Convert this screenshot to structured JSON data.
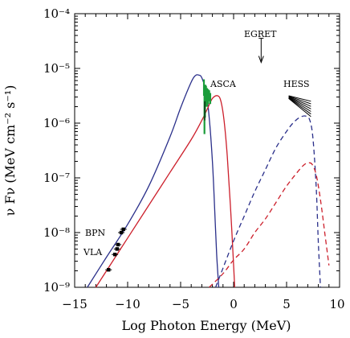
{
  "chart_data": {
    "type": "line",
    "xlabel": "Log Photon Energy (MeV)",
    "ylabel": "ν Fν (MeV cm⁻² s⁻¹)",
    "xlim": [
      -15,
      10
    ],
    "ylim_log10": [
      -9,
      -4
    ],
    "yscale": "log",
    "x_ticks": [
      "−15",
      "−10",
      "−5",
      "0",
      "5",
      "10"
    ],
    "y_ticks": [
      "10⁻⁹",
      "10⁻⁸",
      "10⁻⁷",
      "10⁻⁶",
      "10⁻⁵",
      "10⁻⁴"
    ],
    "annotations": {
      "egret": "EGRET",
      "asca": "ASCA",
      "hess": "HESS",
      "bpn": "BPN",
      "vla": "VLA"
    },
    "colors": {
      "blue_model": "#2a2f8a",
      "red_model": "#cc1f2b",
      "asca_data": "#1a9c3a",
      "axes": "#000000"
    },
    "series": [
      {
        "style": "solid",
        "color": "#2a2f8a",
        "x": [
          -13.8,
          -12,
          -10,
          -8,
          -6,
          -5,
          -4,
          -3.6,
          -3.3,
          -3,
          -2.6,
          -2.3,
          -2,
          -1.8,
          -1.6,
          -1.4
        ],
        "log_y": [
          -9.0,
          -8.45,
          -7.85,
          -7.15,
          -6.25,
          -5.72,
          -5.25,
          -5.13,
          -5.12,
          -5.17,
          -5.42,
          -5.9,
          -6.7,
          -7.5,
          -8.4,
          -9.0
        ]
      },
      {
        "style": "solid",
        "color": "#cc1f2b",
        "x": [
          -13,
          -12,
          -10,
          -8,
          -6,
          -4,
          -3,
          -2.5,
          -2,
          -1.5,
          -1.2,
          -0.9,
          -0.6,
          -0.3,
          0,
          0.1
        ],
        "log_y": [
          -9.0,
          -8.7,
          -8.1,
          -7.5,
          -6.9,
          -6.3,
          -5.95,
          -5.75,
          -5.55,
          -5.5,
          -5.6,
          -5.95,
          -6.6,
          -7.5,
          -8.6,
          -9.0
        ]
      },
      {
        "style": "dashed",
        "color": "#2a2f8a",
        "x": [
          -1.7,
          -1,
          0,
          1,
          2,
          3,
          4,
          5,
          5.6,
          6.2,
          6.8,
          7.2,
          7.5,
          7.8,
          8.0,
          8.2
        ],
        "log_y": [
          -9.0,
          -8.65,
          -8.15,
          -7.7,
          -7.25,
          -6.85,
          -6.45,
          -6.15,
          -6.0,
          -5.9,
          -5.87,
          -5.95,
          -6.3,
          -7.2,
          -8.2,
          -9.0
        ]
      },
      {
        "style": "dashed",
        "color": "#cc1f2b",
        "x": [
          -2.3,
          -1,
          0,
          1,
          2,
          3,
          4,
          5,
          6,
          6.6,
          7,
          7.4,
          7.8,
          8.2,
          8.6,
          9.0
        ],
        "log_y": [
          -9.0,
          -8.75,
          -8.5,
          -8.3,
          -8.0,
          -7.75,
          -7.45,
          -7.15,
          -6.9,
          -6.77,
          -6.73,
          -6.75,
          -6.95,
          -7.4,
          -8.0,
          -8.6
        ]
      }
    ],
    "data_points": {
      "vla_bpn": {
        "x": [
          -11.8,
          -11.2,
          -10.9,
          -10.6,
          -10.4,
          -11.0
        ],
        "log_y": [
          -8.68,
          -8.4,
          -8.22,
          -8.0,
          -7.94,
          -8.3
        ]
      },
      "asca_band": {
        "x": [
          -2.8,
          -2.75,
          -2.7,
          -2.65,
          -2.6,
          -2.5,
          -2.4,
          -2.3,
          -2.2
        ],
        "log_y_low": [
          -5.5,
          -6.2,
          -5.9,
          -5.7,
          -5.6,
          -5.7,
          -5.65,
          -5.6,
          -5.65
        ],
        "log_y_high": [
          -5.2,
          -5.5,
          -5.35,
          -5.3,
          -5.32,
          -5.36,
          -5.38,
          -5.4,
          -5.45
        ]
      },
      "hess_bowtie": {
        "x_range": [
          5.2,
          7.3
        ],
        "log_y_upper": [
          -5.5,
          -5.6
        ],
        "log_y_lower": [
          -5.55,
          -5.88
        ]
      },
      "egret_upper_limit": {
        "x": 2.6,
        "log_y": -4.45
      }
    }
  }
}
